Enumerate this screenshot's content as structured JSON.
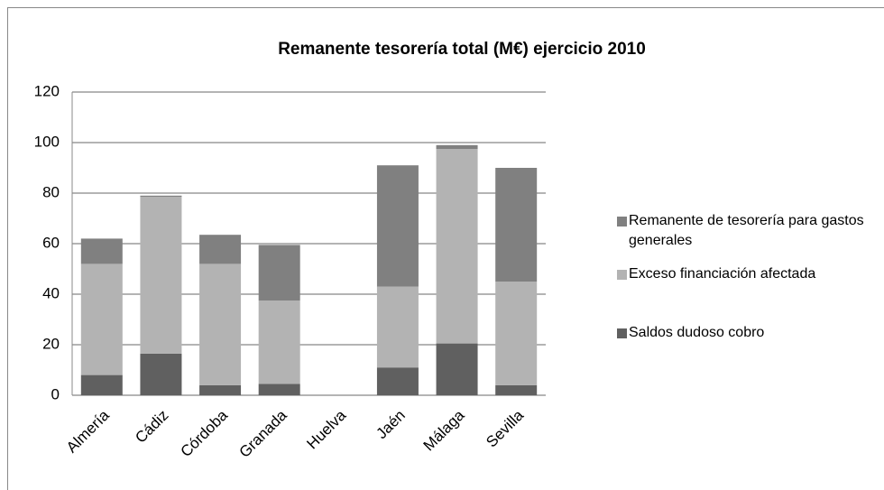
{
  "chart_data": {
    "type": "stacked_bar",
    "title": "Remanente tesorería total (M€) ejercicio 2010",
    "categories": [
      "Almería",
      "Cádiz",
      "Córdoba",
      "Granada",
      "Huelva",
      "Jaén",
      "Málaga",
      "Sevilla"
    ],
    "series": [
      {
        "name": "Saldos dudoso cobro",
        "color": "#606060",
        "values": [
          8,
          16.5,
          4,
          4.5,
          0,
          11,
          20.5,
          4
        ]
      },
      {
        "name": "Exceso financiación afectada",
        "color": "#b3b3b3",
        "values": [
          44,
          62,
          48,
          33,
          0,
          32,
          77,
          41
        ]
      },
      {
        "name": "Remanente de tesorería para gastos generales",
        "color": "#808080",
        "values": [
          10,
          0.5,
          11.5,
          22,
          0,
          48,
          1.5,
          45
        ]
      }
    ],
    "ylim": [
      0,
      120
    ],
    "yticks": [
      0,
      20,
      40,
      60,
      80,
      100,
      120
    ],
    "grid": true
  }
}
